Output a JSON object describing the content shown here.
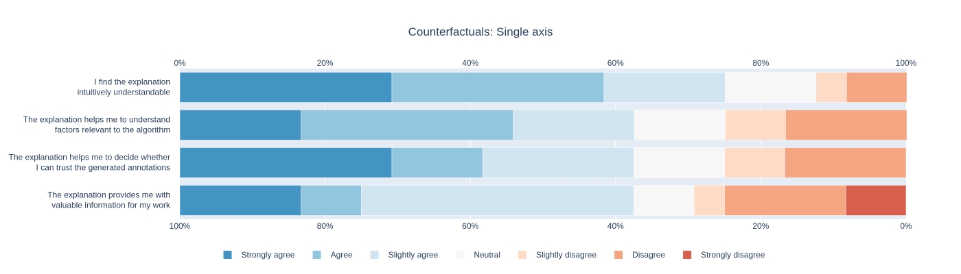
{
  "chart_data": {
    "type": "bar",
    "orientation": "horizontal",
    "barmode": "stack",
    "title": "Counterfactuals: Single axis",
    "top_axis_ticks": [
      "0%",
      "20%",
      "40%",
      "60%",
      "80%",
      "100%"
    ],
    "bottom_axis_ticks": [
      "100%",
      "80%",
      "60%",
      "40%",
      "20%",
      "0%"
    ],
    "xlim": [
      0,
      100
    ],
    "grid": true,
    "legend_position": "bottom",
    "categories": [
      [
        "I find the explanation",
        "intuitively understandable"
      ],
      [
        "The explanation helps me to understand",
        "factors relevant to the algorithm"
      ],
      [
        "The explanation helps me to decide whether",
        "I can trust the generated annotations"
      ],
      [
        "The explanation provides me with",
        "valuable information for my work"
      ]
    ],
    "series": [
      {
        "name": "Strongly agree",
        "color": "#4393c3",
        "values": [
          29.2,
          16.7,
          29.2,
          16.7
        ]
      },
      {
        "name": "Agree",
        "color": "#92c5de",
        "values": [
          29.2,
          29.2,
          12.5,
          8.3
        ]
      },
      {
        "name": "Slightly agree",
        "color": "#d1e5f0",
        "values": [
          16.7,
          16.7,
          20.8,
          37.5
        ]
      },
      {
        "name": "Neutral",
        "color": "#f7f7f7",
        "values": [
          12.5,
          12.5,
          12.5,
          8.3
        ]
      },
      {
        "name": "Slightly disagree",
        "color": "#fddbc7",
        "values": [
          4.2,
          8.3,
          8.3,
          4.2
        ]
      },
      {
        "name": "Disagree",
        "color": "#f4a582",
        "values": [
          8.3,
          16.7,
          16.7,
          16.7
        ]
      },
      {
        "name": "Strongly disagree",
        "color": "#d6604d",
        "values": [
          0,
          0,
          0,
          8.3
        ]
      }
    ],
    "plot_background": "#e5ecf6",
    "grid_color": "#ffffff"
  }
}
